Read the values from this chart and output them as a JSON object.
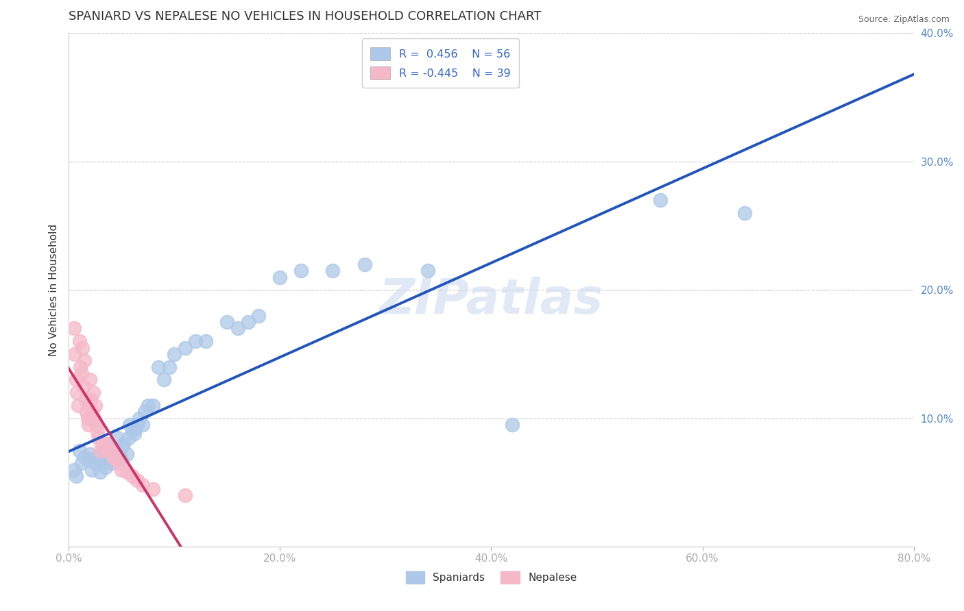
{
  "title": "SPANIARD VS NEPALESE NO VEHICLES IN HOUSEHOLD CORRELATION CHART",
  "source": "Source: ZipAtlas.com",
  "ylabel": "No Vehicles in Household",
  "watermark": "ZIPatlas",
  "xlim": [
    0.0,
    0.8
  ],
  "ylim": [
    0.0,
    0.4
  ],
  "xticks": [
    0.0,
    0.2,
    0.4,
    0.6,
    0.8
  ],
  "xticklabels": [
    "0.0%",
    "20.0%",
    "40.0%",
    "60.0%",
    "80.0%"
  ],
  "yticks": [
    0.0,
    0.1,
    0.2,
    0.3,
    0.4
  ],
  "yticklabels": [
    "",
    "10.0%",
    "20.0%",
    "30.0%",
    "40.0%"
  ],
  "spaniard_color": "#adc8e8",
  "nepalese_color": "#f5b8c8",
  "spaniard_line_color": "#2255bb",
  "nepalese_line_color": "#cc3366",
  "title_fontsize": 13,
  "axis_label_fontsize": 11,
  "tick_fontsize": 11,
  "background_color": "#ffffff",
  "spaniard_scatter_x": [
    0.005,
    0.007,
    0.01,
    0.012,
    0.015,
    0.018,
    0.02,
    0.022,
    0.025,
    0.027,
    0.03,
    0.03,
    0.032,
    0.035,
    0.037,
    0.038,
    0.04,
    0.042,
    0.043,
    0.045,
    0.046,
    0.048,
    0.05,
    0.05,
    0.052,
    0.055,
    0.057,
    0.058,
    0.06,
    0.062,
    0.063,
    0.065,
    0.067,
    0.07,
    0.072,
    0.075,
    0.08,
    0.085,
    0.09,
    0.095,
    0.1,
    0.11,
    0.12,
    0.13,
    0.15,
    0.16,
    0.17,
    0.18,
    0.2,
    0.22,
    0.25,
    0.28,
    0.34,
    0.42,
    0.56,
    0.64
  ],
  "spaniard_scatter_y": [
    0.06,
    0.055,
    0.075,
    0.065,
    0.07,
    0.068,
    0.072,
    0.06,
    0.065,
    0.07,
    0.058,
    0.068,
    0.073,
    0.062,
    0.07,
    0.08,
    0.065,
    0.068,
    0.075,
    0.07,
    0.085,
    0.072,
    0.068,
    0.078,
    0.08,
    0.072,
    0.085,
    0.095,
    0.09,
    0.088,
    0.092,
    0.095,
    0.1,
    0.095,
    0.105,
    0.11,
    0.11,
    0.14,
    0.13,
    0.14,
    0.15,
    0.155,
    0.16,
    0.16,
    0.175,
    0.17,
    0.175,
    0.18,
    0.21,
    0.215,
    0.215,
    0.22,
    0.215,
    0.095,
    0.27,
    0.26
  ],
  "nepalese_scatter_x": [
    0.005,
    0.006,
    0.007,
    0.008,
    0.009,
    0.01,
    0.011,
    0.012,
    0.013,
    0.014,
    0.015,
    0.016,
    0.017,
    0.018,
    0.019,
    0.02,
    0.021,
    0.022,
    0.023,
    0.024,
    0.025,
    0.026,
    0.027,
    0.028,
    0.03,
    0.032,
    0.035,
    0.038,
    0.04,
    0.042,
    0.045,
    0.048,
    0.05,
    0.055,
    0.06,
    0.065,
    0.07,
    0.08,
    0.11
  ],
  "nepalese_scatter_y": [
    0.17,
    0.15,
    0.13,
    0.12,
    0.11,
    0.16,
    0.14,
    0.135,
    0.155,
    0.125,
    0.145,
    0.115,
    0.105,
    0.1,
    0.095,
    0.13,
    0.115,
    0.105,
    0.12,
    0.1,
    0.11,
    0.095,
    0.09,
    0.085,
    0.075,
    0.08,
    0.08,
    0.075,
    0.075,
    0.07,
    0.068,
    0.065,
    0.06,
    0.058,
    0.055,
    0.052,
    0.048,
    0.045,
    0.04
  ]
}
